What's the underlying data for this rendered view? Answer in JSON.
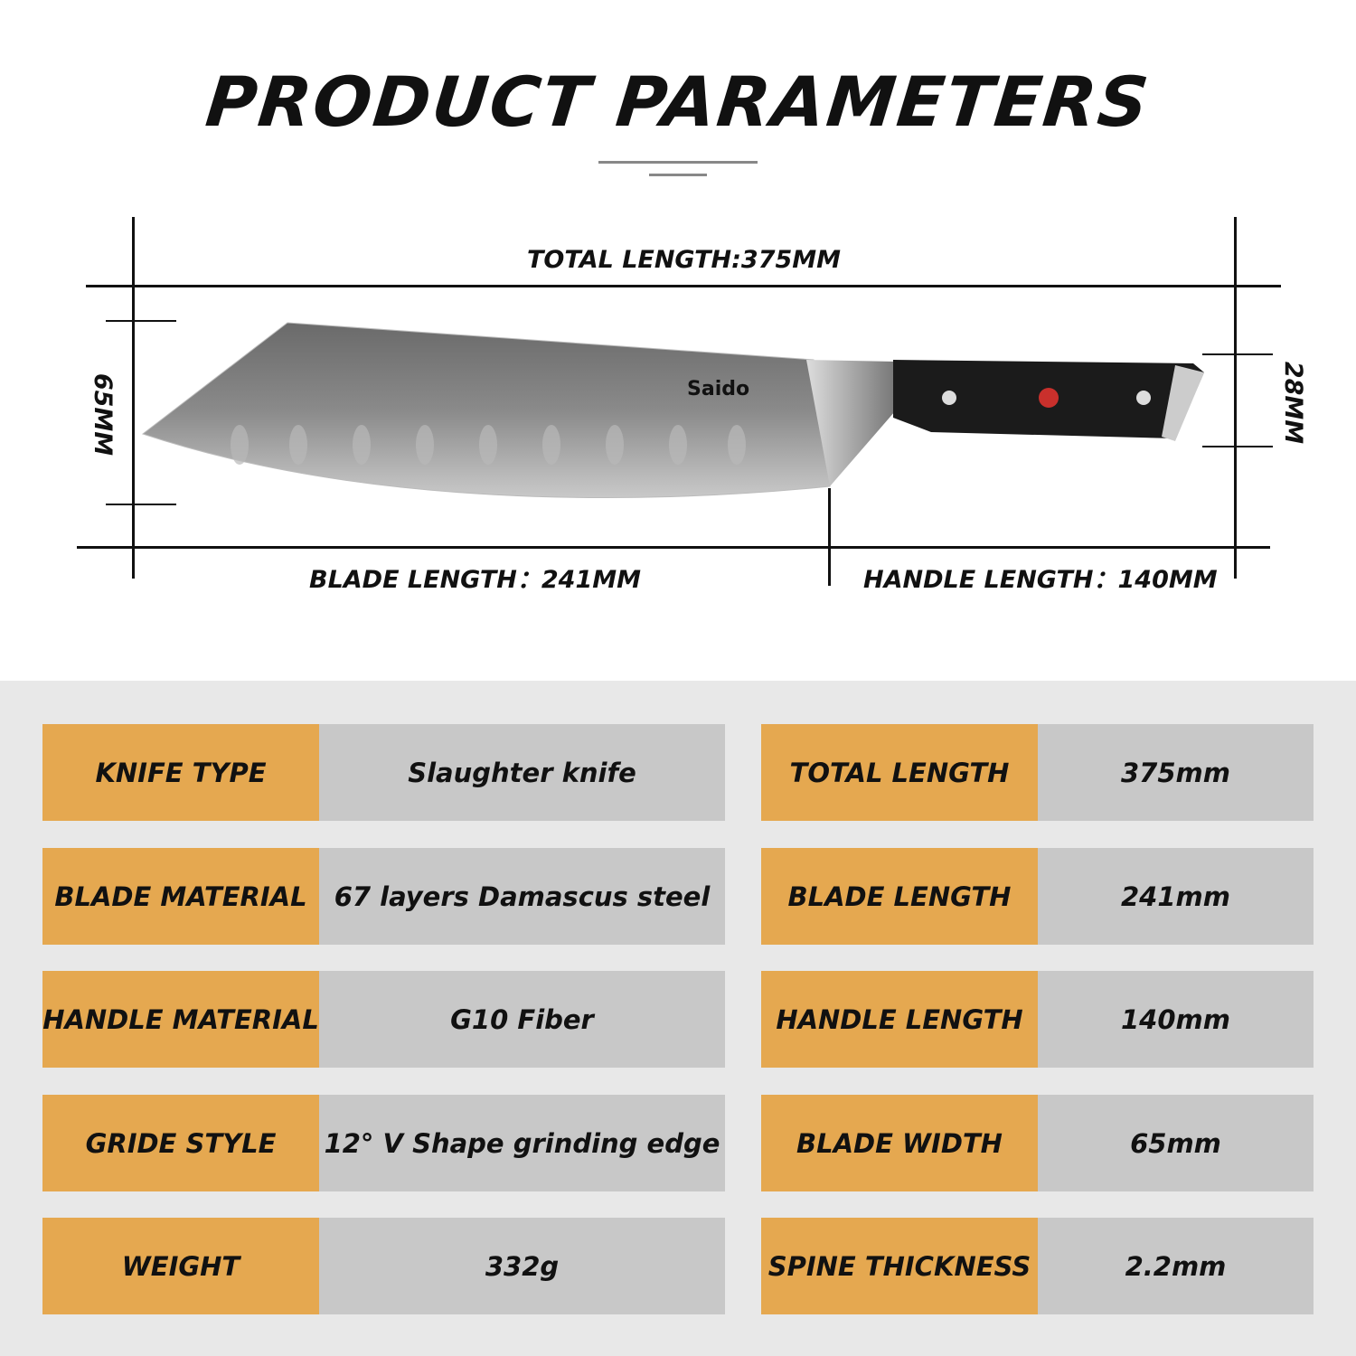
{
  "title": "PRODUCT PARAMETERS",
  "diagram": {
    "total_length": "TOTAL LENGTH:375MM",
    "blade_length": "BLADE LENGTH：241MM",
    "handle_length": "HANDLE LENGTH：140MM",
    "blade_width": "65MM",
    "handle_width": "28MM",
    "logo": "Saido"
  },
  "colors": {
    "key_bg": "#e5a850",
    "value_bg": "#c8c8c8",
    "section_bg": "#e8e8e8"
  },
  "specs_left": [
    {
      "key": "KNIFE TYPE",
      "value": "Slaughter knife"
    },
    {
      "key": "BLADE MATERIAL",
      "value": "67 layers Damascus steel"
    },
    {
      "key": "HANDLE MATERIAL",
      "value": "G10 Fiber"
    },
    {
      "key": "GRIDE STYLE",
      "value": "12° V Shape grinding edge"
    },
    {
      "key": "WEIGHT",
      "value": "332g"
    }
  ],
  "specs_right": [
    {
      "key": "TOTAL LENGTH",
      "value": "375mm"
    },
    {
      "key": "BLADE LENGTH",
      "value": "241mm"
    },
    {
      "key": "HANDLE LENGTH",
      "value": "140mm"
    },
    {
      "key": "BLADE WIDTH",
      "value": "65mm"
    },
    {
      "key": "SPINE THICKNESS",
      "value": "2.2mm"
    }
  ]
}
